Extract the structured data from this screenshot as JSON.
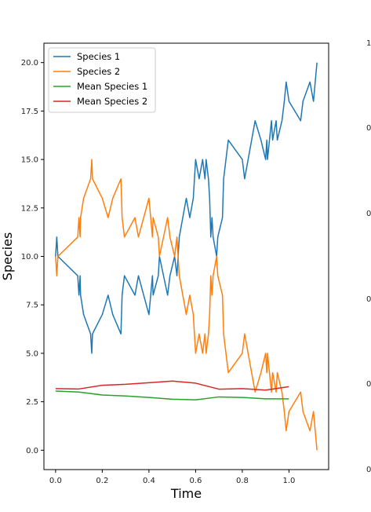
{
  "chart_data": {
    "type": "line",
    "xlabel": "Time",
    "ylabel": "Species",
    "xlim": [
      -0.05,
      1.17
    ],
    "ylim": [
      -1.0,
      21.0
    ],
    "xticks": [
      "0.0",
      "0.2",
      "0.4",
      "0.6",
      "0.8",
      "1.0"
    ],
    "yticks": [
      "0.0",
      "2.5",
      "5.0",
      "7.5",
      "10.0",
      "12.5",
      "15.0",
      "17.5",
      "20.0"
    ],
    "legend_position": "top-left",
    "partial_right_ticks": [
      "1",
      "0",
      "0",
      "0",
      "0",
      "0"
    ],
    "series": [
      {
        "name": "Species 1",
        "color": "#1f77b4",
        "points": [
          [
            0.0,
            10
          ],
          [
            0.005,
            11
          ],
          [
            0.01,
            10
          ],
          [
            0.095,
            9
          ],
          [
            0.1,
            8
          ],
          [
            0.105,
            9
          ],
          [
            0.107,
            8
          ],
          [
            0.12,
            7
          ],
          [
            0.15,
            6
          ],
          [
            0.155,
            5
          ],
          [
            0.158,
            6
          ],
          [
            0.2,
            7
          ],
          [
            0.225,
            8
          ],
          [
            0.245,
            7
          ],
          [
            0.28,
            6
          ],
          [
            0.285,
            8
          ],
          [
            0.295,
            9
          ],
          [
            0.34,
            8
          ],
          [
            0.355,
            9
          ],
          [
            0.4,
            7
          ],
          [
            0.415,
            9
          ],
          [
            0.418,
            8
          ],
          [
            0.44,
            9
          ],
          [
            0.445,
            10
          ],
          [
            0.48,
            8
          ],
          [
            0.49,
            9
          ],
          [
            0.51,
            10
          ],
          [
            0.52,
            9
          ],
          [
            0.525,
            10
          ],
          [
            0.53,
            11
          ],
          [
            0.545,
            12
          ],
          [
            0.56,
            13
          ],
          [
            0.575,
            12
          ],
          [
            0.59,
            13
          ],
          [
            0.6,
            15
          ],
          [
            0.615,
            14
          ],
          [
            0.63,
            15
          ],
          [
            0.64,
            14
          ],
          [
            0.645,
            15
          ],
          [
            0.655,
            14
          ],
          [
            0.66,
            13
          ],
          [
            0.665,
            11
          ],
          [
            0.67,
            12
          ],
          [
            0.675,
            11
          ],
          [
            0.69,
            10
          ],
          [
            0.695,
            11
          ],
          [
            0.715,
            12
          ],
          [
            0.72,
            14
          ],
          [
            0.73,
            15
          ],
          [
            0.74,
            16
          ],
          [
            0.8,
            15
          ],
          [
            0.81,
            14
          ],
          [
            0.84,
            16
          ],
          [
            0.855,
            17
          ],
          [
            0.88,
            16
          ],
          [
            0.9,
            15
          ],
          [
            0.905,
            16
          ],
          [
            0.908,
            15
          ],
          [
            0.925,
            17
          ],
          [
            0.93,
            16
          ],
          [
            0.945,
            17
          ],
          [
            0.95,
            16
          ],
          [
            0.97,
            17
          ],
          [
            0.98,
            18
          ],
          [
            0.988,
            19
          ],
          [
            1.0,
            18
          ],
          [
            1.05,
            17
          ],
          [
            1.06,
            18
          ],
          [
            1.09,
            19
          ],
          [
            1.105,
            18
          ],
          [
            1.12,
            20
          ]
        ]
      },
      {
        "name": "Species 2",
        "color": "#ff7f0e",
        "points": [
          [
            0.0,
            10
          ],
          [
            0.005,
            9
          ],
          [
            0.01,
            10
          ],
          [
            0.095,
            11
          ],
          [
            0.1,
            12
          ],
          [
            0.105,
            11
          ],
          [
            0.107,
            12
          ],
          [
            0.12,
            13
          ],
          [
            0.15,
            14
          ],
          [
            0.155,
            15
          ],
          [
            0.158,
            14
          ],
          [
            0.2,
            13
          ],
          [
            0.225,
            12
          ],
          [
            0.245,
            13
          ],
          [
            0.28,
            14
          ],
          [
            0.285,
            12
          ],
          [
            0.295,
            11
          ],
          [
            0.34,
            12
          ],
          [
            0.355,
            11
          ],
          [
            0.4,
            13
          ],
          [
            0.415,
            11
          ],
          [
            0.418,
            12
          ],
          [
            0.44,
            11
          ],
          [
            0.445,
            10
          ],
          [
            0.48,
            12
          ],
          [
            0.49,
            11
          ],
          [
            0.51,
            10
          ],
          [
            0.52,
            11
          ],
          [
            0.525,
            10
          ],
          [
            0.53,
            9
          ],
          [
            0.545,
            8
          ],
          [
            0.56,
            7
          ],
          [
            0.575,
            8
          ],
          [
            0.59,
            7
          ],
          [
            0.6,
            5
          ],
          [
            0.615,
            6
          ],
          [
            0.63,
            5
          ],
          [
            0.64,
            6
          ],
          [
            0.645,
            5
          ],
          [
            0.655,
            6
          ],
          [
            0.66,
            7
          ],
          [
            0.665,
            9
          ],
          [
            0.67,
            8
          ],
          [
            0.675,
            9
          ],
          [
            0.69,
            10
          ],
          [
            0.695,
            9
          ],
          [
            0.715,
            8
          ],
          [
            0.72,
            6
          ],
          [
            0.73,
            5
          ],
          [
            0.74,
            4
          ],
          [
            0.8,
            5
          ],
          [
            0.81,
            6
          ],
          [
            0.84,
            4
          ],
          [
            0.855,
            3
          ],
          [
            0.88,
            4
          ],
          [
            0.9,
            5
          ],
          [
            0.905,
            4
          ],
          [
            0.908,
            5
          ],
          [
            0.925,
            3
          ],
          [
            0.93,
            4
          ],
          [
            0.945,
            3
          ],
          [
            0.95,
            4
          ],
          [
            0.97,
            3
          ],
          [
            0.98,
            2
          ],
          [
            0.988,
            1
          ],
          [
            1.0,
            2
          ],
          [
            1.05,
            3
          ],
          [
            1.06,
            2
          ],
          [
            1.09,
            1
          ],
          [
            1.105,
            2
          ],
          [
            1.12,
            0
          ]
        ]
      },
      {
        "name": "Mean Species 1",
        "color": "#2ca02c",
        "points": [
          [
            0.0,
            3.05
          ],
          [
            0.1,
            3.0
          ],
          [
            0.2,
            2.85
          ],
          [
            0.3,
            2.8
          ],
          [
            0.4,
            2.72
          ],
          [
            0.5,
            2.63
          ],
          [
            0.6,
            2.6
          ],
          [
            0.7,
            2.75
          ],
          [
            0.8,
            2.72
          ],
          [
            0.9,
            2.65
          ],
          [
            1.0,
            2.65
          ]
        ]
      },
      {
        "name": "Mean Species 2",
        "color": "#d62728",
        "points": [
          [
            0.0,
            3.18
          ],
          [
            0.1,
            3.16
          ],
          [
            0.2,
            3.35
          ],
          [
            0.3,
            3.4
          ],
          [
            0.4,
            3.48
          ],
          [
            0.5,
            3.57
          ],
          [
            0.6,
            3.46
          ],
          [
            0.7,
            3.15
          ],
          [
            0.8,
            3.18
          ],
          [
            0.9,
            3.1
          ],
          [
            1.0,
            3.28
          ]
        ]
      }
    ]
  }
}
